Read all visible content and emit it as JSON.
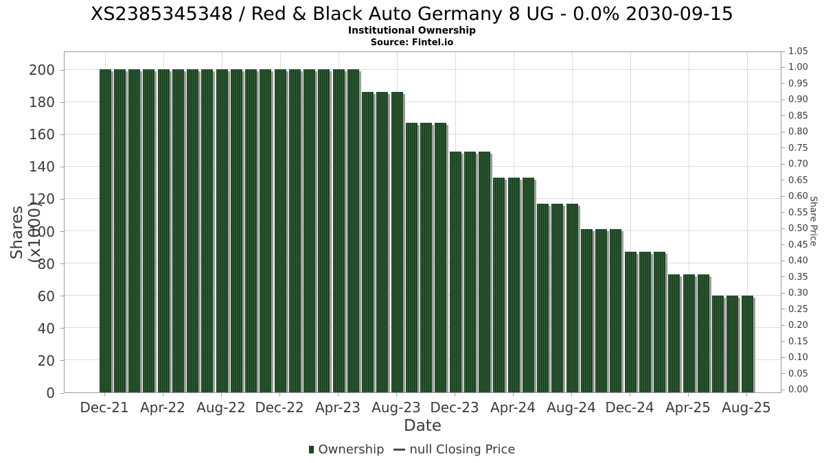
{
  "title": "XS2385345348 / Red & Black Auto Germany 8 UG - 0.0% 2030-09-15",
  "subtitle": "Institutional Ownership",
  "source": "Source: Fintel.io",
  "chart_data": {
    "type": "bar",
    "title": "XS2385345348 / Red & Black Auto Germany 8 UG - 0.0% 2030-09-15",
    "xlabel": "Date",
    "ylabel_left": "Shares (x1000)",
    "ylabel_right": "Share Price",
    "categories": [
      "Dec-21",
      "Jan-22",
      "Feb-22",
      "Mar-22",
      "Apr-22",
      "May-22",
      "Jun-22",
      "Jul-22",
      "Aug-22",
      "Sep-22",
      "Oct-22",
      "Nov-22",
      "Dec-22",
      "Jan-23",
      "Feb-23",
      "Mar-23",
      "Apr-23",
      "May-23",
      "Jun-23",
      "Jul-23",
      "Aug-23",
      "Sep-23",
      "Oct-23",
      "Nov-23",
      "Dec-23",
      "Jan-24",
      "Feb-24",
      "Mar-24",
      "Apr-24",
      "May-24",
      "Jun-24",
      "Jul-24",
      "Aug-24",
      "Sep-24",
      "Oct-24",
      "Nov-24",
      "Dec-24",
      "Jan-25",
      "Feb-25",
      "Mar-25",
      "Apr-25",
      "May-25",
      "Jun-25",
      "Jul-25",
      "Aug-25"
    ],
    "values": [
      200,
      200,
      200,
      200,
      200,
      200,
      200,
      200,
      200,
      200,
      200,
      200,
      200,
      200,
      200,
      200,
      200,
      200,
      186,
      186,
      186,
      167,
      167,
      167,
      149,
      149,
      149,
      133,
      133,
      133,
      117,
      117,
      117,
      101,
      101,
      101,
      87,
      87,
      87,
      73,
      73,
      73,
      60,
      60,
      60
    ],
    "x_tick_labels": [
      "Dec-21",
      "Apr-22",
      "Aug-22",
      "Dec-22",
      "Apr-23",
      "Aug-23",
      "Dec-23",
      "Apr-24",
      "Aug-24",
      "Dec-24",
      "Apr-25",
      "Aug-25"
    ],
    "x_tick_every": 4,
    "y_left_ticks": [
      0,
      20,
      40,
      60,
      80,
      100,
      120,
      140,
      160,
      180,
      200
    ],
    "y_right_tick_labels": [
      "0.00",
      "0.05",
      "0.10",
      "0.15",
      "0.20",
      "0.25",
      "0.30",
      "0.35",
      "0.40",
      "0.45",
      "0.50",
      "0.55",
      "0.60",
      "0.65",
      "0.70",
      "0.75",
      "0.80",
      "0.85",
      "0.90",
      "0.95",
      "1.00",
      "1.05"
    ],
    "ylim_left": [
      0,
      211.5
    ],
    "ylim_right": [
      0,
      1.05
    ],
    "grid": true,
    "legend": {
      "ownership": "Ownership",
      "price": "null Closing Price"
    },
    "colors": {
      "bar_dark": "#16391b",
      "bar_mid": "#2b5731",
      "bar_swatch": "#1d4522",
      "shadow": "#9d9d9d",
      "grid": "#dcdcdc",
      "spine": "#999999",
      "text": "#3a3a3a"
    }
  }
}
